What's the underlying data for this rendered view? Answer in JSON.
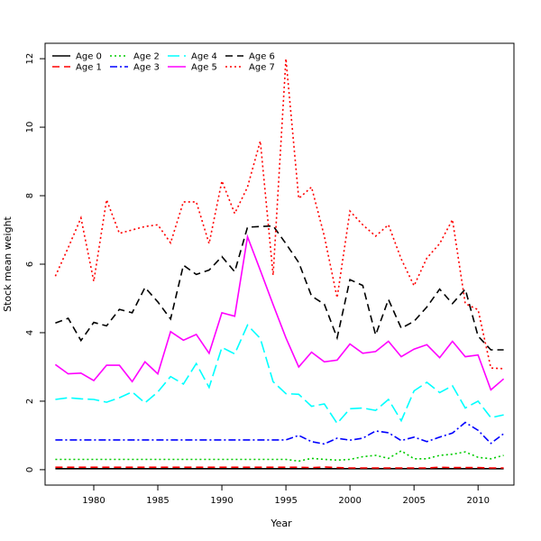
{
  "chart_data": {
    "type": "line",
    "title": "",
    "xlabel": "Year",
    "ylabel": "Stock mean weight",
    "xlim": [
      1976.2,
      2012.8
    ],
    "ylim": [
      -0.45,
      12.45
    ],
    "xticks": [
      1980,
      1985,
      1990,
      1995,
      2000,
      2005,
      2010
    ],
    "yticks": [
      0,
      2,
      4,
      6,
      8,
      10,
      12
    ],
    "grid": false,
    "legend_position": "top-left",
    "x": [
      1977,
      1978,
      1979,
      1980,
      1981,
      1982,
      1983,
      1984,
      1985,
      1986,
      1987,
      1988,
      1989,
      1990,
      1991,
      1992,
      1993,
      1994,
      1995,
      1996,
      1997,
      1998,
      1999,
      2000,
      2001,
      2002,
      2003,
      2004,
      2005,
      2006,
      2007,
      2008,
      2009,
      2010,
      2011,
      2012
    ],
    "series": [
      {
        "name": "Age 0",
        "color": "#000000",
        "dash": "solid",
        "values": [
          0.03,
          0.03,
          0.03,
          0.03,
          0.03,
          0.03,
          0.03,
          0.03,
          0.03,
          0.03,
          0.03,
          0.03,
          0.03,
          0.03,
          0.03,
          0.03,
          0.03,
          0.03,
          0.03,
          0.03,
          0.03,
          0.03,
          0.03,
          0.03,
          0.03,
          0.03,
          0.03,
          0.03,
          0.03,
          0.03,
          0.03,
          0.03,
          0.03,
          0.03,
          0.03,
          0.03
        ]
      },
      {
        "name": "Age 1",
        "color": "#ff0000",
        "dash": "dashed",
        "values": [
          0.07,
          0.07,
          0.07,
          0.07,
          0.07,
          0.07,
          0.07,
          0.07,
          0.07,
          0.07,
          0.07,
          0.07,
          0.07,
          0.07,
          0.07,
          0.07,
          0.07,
          0.07,
          0.07,
          0.07,
          0.06,
          0.08,
          0.06,
          0.05,
          0.05,
          0.05,
          0.05,
          0.05,
          0.05,
          0.05,
          0.07,
          0.06,
          0.06,
          0.06,
          0.05,
          0.05
        ]
      },
      {
        "name": "Age 2",
        "color": "#00cc00",
        "dash": "dotted",
        "values": [
          0.3,
          0.3,
          0.3,
          0.3,
          0.3,
          0.3,
          0.3,
          0.3,
          0.3,
          0.3,
          0.3,
          0.3,
          0.3,
          0.3,
          0.3,
          0.3,
          0.3,
          0.3,
          0.3,
          0.25,
          0.33,
          0.3,
          0.28,
          0.3,
          0.38,
          0.42,
          0.33,
          0.55,
          0.32,
          0.32,
          0.42,
          0.45,
          0.52,
          0.36,
          0.32,
          0.42
        ]
      },
      {
        "name": "Age 3",
        "color": "#0000ff",
        "dash": "dashdot",
        "values": [
          0.87,
          0.87,
          0.87,
          0.87,
          0.87,
          0.87,
          0.87,
          0.87,
          0.87,
          0.87,
          0.87,
          0.87,
          0.87,
          0.87,
          0.87,
          0.87,
          0.87,
          0.87,
          0.87,
          1.0,
          0.82,
          0.75,
          0.92,
          0.86,
          0.92,
          1.13,
          1.08,
          0.85,
          0.95,
          0.82,
          0.95,
          1.07,
          1.38,
          1.15,
          0.77,
          1.05
        ]
      },
      {
        "name": "Age 4",
        "color": "#00ffff",
        "dash": "longdash",
        "values": [
          2.05,
          2.1,
          2.07,
          2.05,
          1.97,
          2.1,
          2.27,
          1.95,
          2.27,
          2.72,
          2.5,
          3.1,
          2.4,
          3.57,
          3.38,
          4.22,
          3.83,
          2.57,
          2.22,
          2.2,
          1.85,
          1.92,
          1.35,
          1.78,
          1.8,
          1.73,
          2.05,
          1.43,
          2.3,
          2.55,
          2.25,
          2.45,
          1.8,
          2.0,
          1.52,
          1.6
        ]
      },
      {
        "name": "Age 5",
        "color": "#ff00ff",
        "dash": "solid",
        "values": [
          3.07,
          2.8,
          2.82,
          2.6,
          3.05,
          3.05,
          2.57,
          3.15,
          2.8,
          4.03,
          3.78,
          3.95,
          3.4,
          4.58,
          4.48,
          6.8,
          5.82,
          4.82,
          3.85,
          3.0,
          3.43,
          3.15,
          3.2,
          3.67,
          3.4,
          3.45,
          3.75,
          3.3,
          3.52,
          3.65,
          3.27,
          3.75,
          3.3,
          3.35,
          2.33,
          2.65
        ]
      },
      {
        "name": "Age 6",
        "color": "#000000",
        "dash": "dashed",
        "values": [
          4.28,
          4.42,
          3.77,
          4.3,
          4.2,
          4.68,
          4.58,
          5.32,
          4.9,
          4.4,
          5.97,
          5.7,
          5.83,
          6.22,
          5.78,
          7.08,
          7.1,
          7.12,
          6.6,
          6.05,
          5.07,
          4.83,
          3.85,
          5.55,
          5.38,
          3.93,
          4.97,
          4.13,
          4.33,
          4.75,
          5.27,
          4.85,
          5.27,
          3.9,
          3.5,
          3.5
        ]
      },
      {
        "name": "Age 7",
        "color": "#ff0000",
        "dash": "dotted",
        "values": [
          5.65,
          6.48,
          7.35,
          5.5,
          7.88,
          6.9,
          7.0,
          7.1,
          7.15,
          6.62,
          7.82,
          7.82,
          6.6,
          8.43,
          7.48,
          8.25,
          9.6,
          5.68,
          12.0,
          7.92,
          8.25,
          6.82,
          5.02,
          7.55,
          7.15,
          6.82,
          7.15,
          6.15,
          5.37,
          6.18,
          6.6,
          7.3,
          4.85,
          4.67,
          2.97,
          2.95
        ]
      }
    ]
  }
}
